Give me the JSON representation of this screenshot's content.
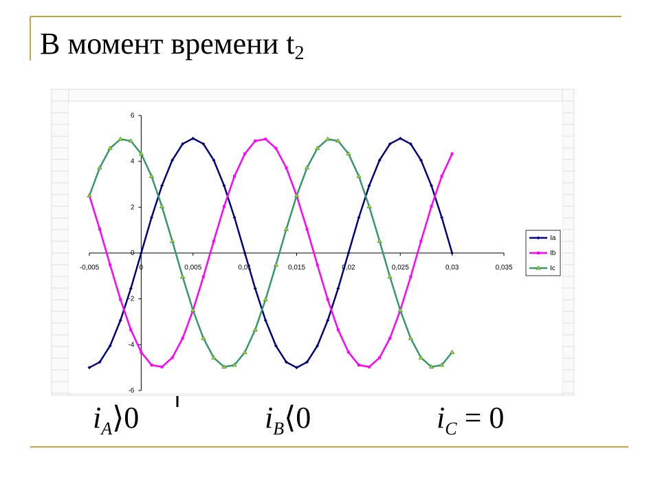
{
  "header": {
    "title": "В момент времени t",
    "title_subscript": "2"
  },
  "chart_data": {
    "type": "line",
    "x": [
      -0.005,
      -0.004,
      -0.003,
      -0.002,
      -0.001,
      0,
      0.001,
      0.002,
      0.003,
      0.004,
      0.005,
      0.006,
      0.007,
      0.008,
      0.009,
      0.01,
      0.011,
      0.012,
      0.013,
      0.014,
      0.015,
      0.016,
      0.017,
      0.018,
      0.019,
      0.02,
      0.021,
      0.022,
      0.023,
      0.024,
      0.025,
      0.026,
      0.027,
      0.028,
      0.029,
      0.03
    ],
    "series": [
      {
        "name": "Ia",
        "color": "#000080",
        "marker": "diamond",
        "values": [
          -5,
          -4.76,
          -4.05,
          -2.94,
          -1.55,
          0,
          1.55,
          2.94,
          4.05,
          4.76,
          5,
          4.76,
          4.05,
          2.94,
          1.55,
          0,
          -1.55,
          -2.94,
          -4.05,
          -4.76,
          -5,
          -4.76,
          -4.05,
          -2.94,
          -1.55,
          0,
          1.55,
          2.94,
          4.05,
          4.76,
          5,
          4.76,
          4.05,
          2.94,
          1.55,
          0
        ]
      },
      {
        "name": "Ib",
        "color": "#ff00ff",
        "marker": "square",
        "values": [
          2.5,
          1.04,
          -0.52,
          -2.03,
          -3.35,
          -4.33,
          -4.89,
          -4.97,
          -4.57,
          -3.72,
          -2.5,
          -1.04,
          0.52,
          2.03,
          3.35,
          4.33,
          4.89,
          4.97,
          4.57,
          3.72,
          2.5,
          1.04,
          -0.52,
          -2.03,
          -3.35,
          -4.33,
          -4.89,
          -4.97,
          -4.57,
          -3.72,
          -2.5,
          -1.04,
          0.52,
          2.03,
          3.35,
          4.33
        ]
      },
      {
        "name": "Ic",
        "color": "#339966",
        "marker": "triangle",
        "values": [
          2.5,
          3.72,
          4.57,
          4.97,
          4.89,
          4.33,
          3.35,
          2.03,
          0.52,
          -1.04,
          -2.5,
          -3.72,
          -4.57,
          -4.97,
          -4.89,
          -4.33,
          -3.35,
          -2.03,
          -0.52,
          1.04,
          2.5,
          3.72,
          4.57,
          4.97,
          4.89,
          4.33,
          3.35,
          2.03,
          0.52,
          -1.04,
          -2.5,
          -3.72,
          -4.57,
          -4.97,
          -4.89,
          -4.33
        ]
      }
    ],
    "xlim": [
      -0.005,
      0.035
    ],
    "xticks": [
      {
        "value": -0.005,
        "label": "-0,005"
      },
      0,
      {
        "value": 0.005,
        "label": "0,005"
      },
      {
        "value": 0.01,
        "label": "0,01"
      },
      {
        "value": 0.015,
        "label": "0,015"
      },
      {
        "value": 0.02,
        "label": "0,02"
      },
      {
        "value": 0.025,
        "label": "0,025"
      },
      {
        "value": 0.03,
        "label": "0,03"
      },
      {
        "value": 0.035,
        "label": "0,035"
      }
    ],
    "ylim": [
      -6,
      6
    ],
    "yticks": [
      -6,
      -4,
      -2,
      0,
      2,
      4,
      6
    ],
    "legend": "right"
  },
  "formulas": [
    {
      "symbol": "i",
      "sub": "A",
      "relation": "⟩",
      "value": "0"
    },
    {
      "symbol": "i",
      "sub": "B",
      "relation": "⟨",
      "value": "0"
    },
    {
      "symbol": "i",
      "sub": "C",
      "relation": " = ",
      "value": "0"
    }
  ]
}
